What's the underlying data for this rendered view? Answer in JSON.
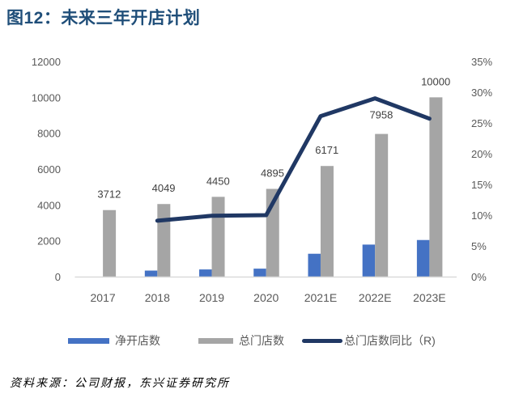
{
  "title": "图12：未来三年开店计划",
  "source": "资料来源：公司财报，东兴证券研究所",
  "colors": {
    "net_open": "#4472C4",
    "total": "#A5A5A5",
    "yoy_line": "#203864",
    "axis_line": "#D9D9D9",
    "title": "#1F4E79"
  },
  "legend": [
    {
      "label": "净开店数",
      "type": "bar",
      "color": "#4472C4"
    },
    {
      "label": "总门店数",
      "type": "bar",
      "color": "#A5A5A5"
    },
    {
      "label": "总门店数同比（R)",
      "type": "line",
      "color": "#203864"
    }
  ],
  "chart_data": {
    "type": "bar+line",
    "title": "图12：未来三年开店计划",
    "categories": [
      "2017",
      "2018",
      "2019",
      "2020",
      "2021E",
      "2022E",
      "2023E"
    ],
    "series": [
      {
        "name": "净开店数",
        "type": "bar",
        "axis": "left",
        "values": [
          null,
          337,
          401,
          445,
          1276,
          1787,
          2042
        ]
      },
      {
        "name": "总门店数",
        "type": "bar",
        "axis": "left",
        "values": [
          3712,
          4049,
          4450,
          4895,
          6171,
          7958,
          10000
        ],
        "data_labels": true
      },
      {
        "name": "总门店数同比（R)",
        "type": "line",
        "axis": "right",
        "values": [
          null,
          9.1,
          9.9,
          10.0,
          26.1,
          29.0,
          25.7
        ],
        "unit": "%"
      }
    ],
    "left_axis": {
      "ticks": [
        "0",
        "2000",
        "4000",
        "6000",
        "8000",
        "10000",
        "12000"
      ],
      "ylim": [
        0,
        12000
      ]
    },
    "right_axis": {
      "ticks": [
        "0%",
        "5%",
        "10%",
        "15%",
        "20%",
        "25%",
        "30%",
        "35%"
      ],
      "ylim": [
        0,
        35
      ]
    },
    "xlabel": "",
    "ylabel": "",
    "grid": false,
    "legend_position": "bottom"
  }
}
